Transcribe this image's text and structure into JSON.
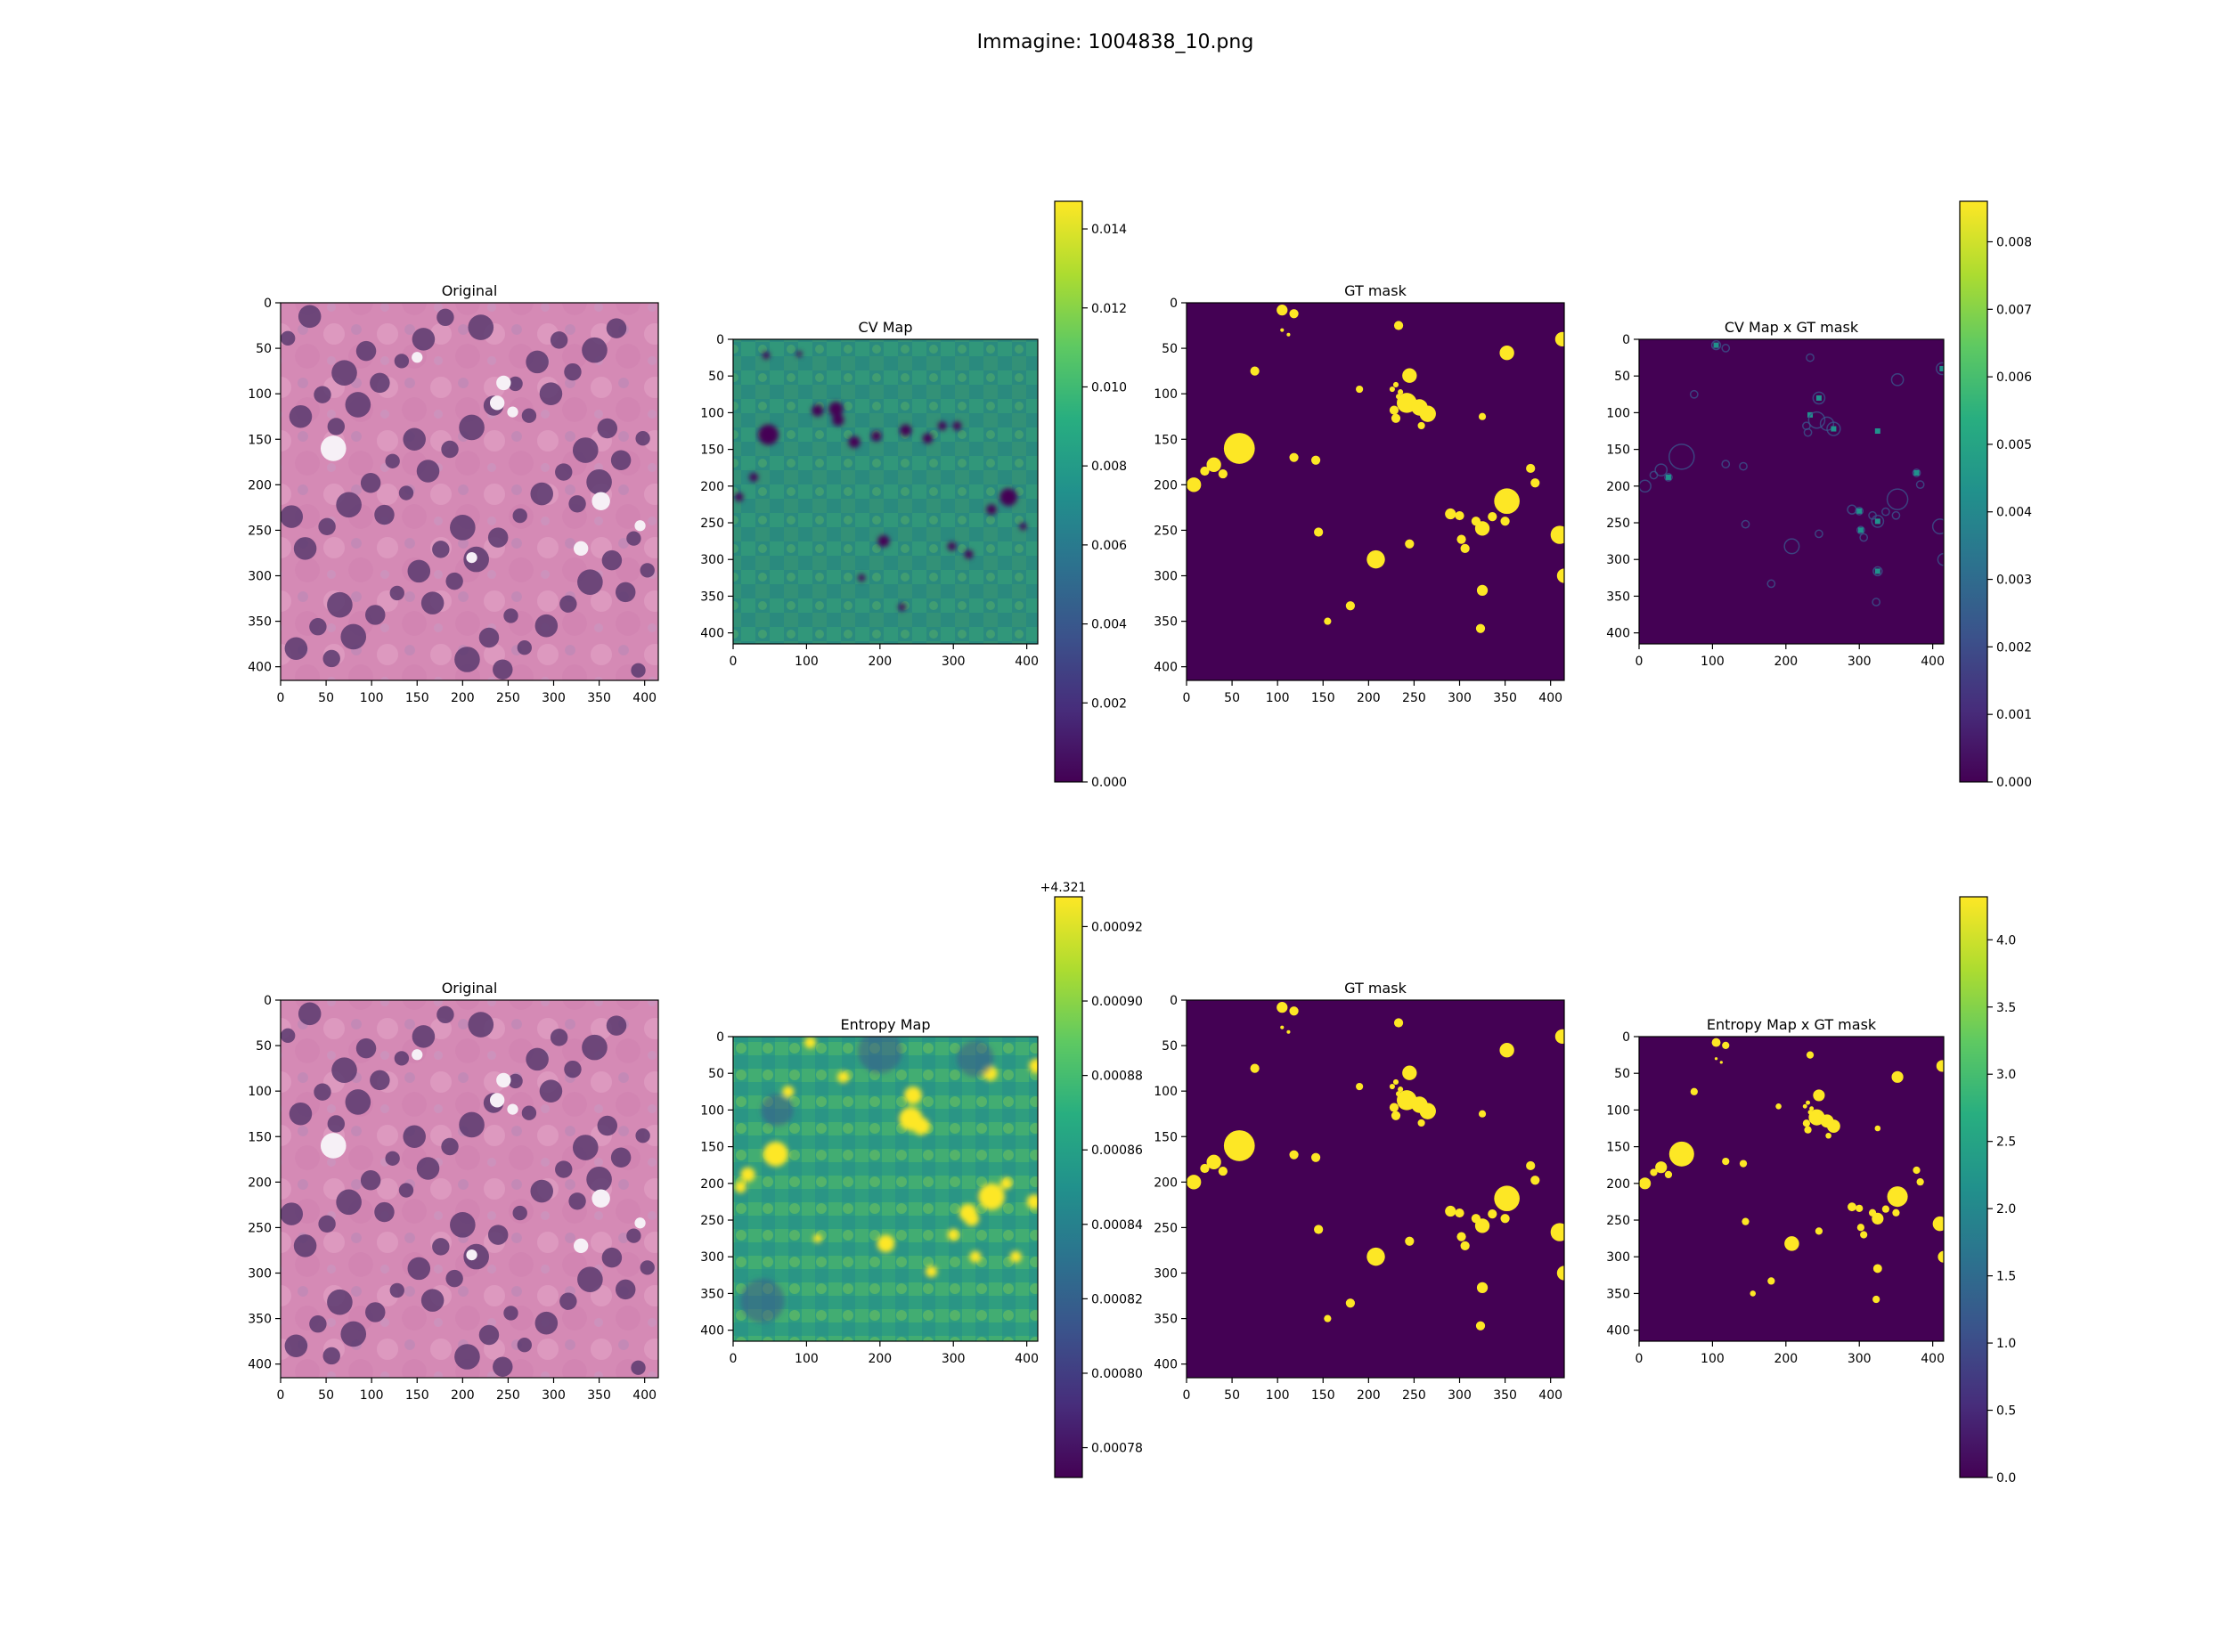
{
  "figure": {
    "suptitle": "Immagine: 1004838_10.png"
  },
  "colors": {
    "viridis_dark": "#440154",
    "viridis_yellow": "#fde725",
    "tissue_pink": "#d98bb5",
    "nucleus_purple": "#5a3a6e"
  },
  "chart_data": [
    {
      "type": "heatmap",
      "title": "Original",
      "row": 1,
      "col": 1,
      "image": "H&E histology tile",
      "xticks": [
        "0",
        "50",
        "100",
        "150",
        "200",
        "250",
        "300",
        "350",
        "400"
      ],
      "yticks": [
        "0",
        "50",
        "100",
        "150",
        "200",
        "250",
        "300",
        "350",
        "400"
      ],
      "xlim": [
        0,
        415
      ],
      "ylim": [
        415,
        0
      ],
      "colorbar": null
    },
    {
      "type": "heatmap",
      "title": "CV Map",
      "row": 1,
      "col": 2,
      "colormap": "viridis",
      "xticks": [
        "0",
        "100",
        "200",
        "300",
        "400"
      ],
      "yticks": [
        "0",
        "50",
        "100",
        "150",
        "200",
        "250",
        "300",
        "350",
        "400"
      ],
      "xlim": [
        0,
        415
      ],
      "ylim": [
        415,
        0
      ],
      "colorbar": {
        "min": 0.0,
        "max": 0.0147,
        "offset": "",
        "ticks": [
          {
            "v": 0.0,
            "label": "0.000"
          },
          {
            "v": 0.002,
            "label": "0.002"
          },
          {
            "v": 0.004,
            "label": "0.004"
          },
          {
            "v": 0.006,
            "label": "0.006"
          },
          {
            "v": 0.008,
            "label": "0.008"
          },
          {
            "v": 0.01,
            "label": "0.010"
          },
          {
            "v": 0.012,
            "label": "0.012"
          },
          {
            "v": 0.014,
            "label": "0.014"
          }
        ]
      }
    },
    {
      "type": "heatmap",
      "title": "GT mask",
      "row": 1,
      "col": 3,
      "colormap": "viridis",
      "xticks": [
        "0",
        "50",
        "100",
        "150",
        "200",
        "250",
        "300",
        "350",
        "400"
      ],
      "yticks": [
        "0",
        "50",
        "100",
        "150",
        "200",
        "250",
        "300",
        "350",
        "400"
      ],
      "xlim": [
        0,
        415
      ],
      "ylim": [
        415,
        0
      ],
      "colorbar": null
    },
    {
      "type": "heatmap",
      "title": "CV Map x GT mask",
      "row": 1,
      "col": 4,
      "colormap": "viridis",
      "xticks": [
        "0",
        "100",
        "200",
        "300",
        "400"
      ],
      "yticks": [
        "0",
        "50",
        "100",
        "150",
        "200",
        "250",
        "300",
        "350",
        "400"
      ],
      "xlim": [
        0,
        415
      ],
      "ylim": [
        415,
        0
      ],
      "colorbar": {
        "min": 0.0,
        "max": 0.0086,
        "offset": "",
        "ticks": [
          {
            "v": 0.0,
            "label": "0.000"
          },
          {
            "v": 0.001,
            "label": "0.001"
          },
          {
            "v": 0.002,
            "label": "0.002"
          },
          {
            "v": 0.003,
            "label": "0.003"
          },
          {
            "v": 0.004,
            "label": "0.004"
          },
          {
            "v": 0.005,
            "label": "0.005"
          },
          {
            "v": 0.006,
            "label": "0.006"
          },
          {
            "v": 0.007,
            "label": "0.007"
          },
          {
            "v": 0.008,
            "label": "0.008"
          }
        ]
      }
    },
    {
      "type": "heatmap",
      "title": "Original",
      "row": 2,
      "col": 1,
      "image": "H&E histology tile",
      "xticks": [
        "0",
        "50",
        "100",
        "150",
        "200",
        "250",
        "300",
        "350",
        "400"
      ],
      "yticks": [
        "0",
        "50",
        "100",
        "150",
        "200",
        "250",
        "300",
        "350",
        "400"
      ],
      "xlim": [
        0,
        415
      ],
      "ylim": [
        415,
        0
      ],
      "colorbar": null
    },
    {
      "type": "heatmap",
      "title": "Entropy Map",
      "row": 2,
      "col": 2,
      "colormap": "viridis",
      "xticks": [
        "0",
        "100",
        "200",
        "300",
        "400"
      ],
      "yticks": [
        "0",
        "50",
        "100",
        "150",
        "200",
        "250",
        "300",
        "350",
        "400"
      ],
      "xlim": [
        0,
        415
      ],
      "ylim": [
        415,
        0
      ],
      "colorbar": {
        "min": 0.000772,
        "max": 0.000928,
        "offset": "+4.321",
        "ticks": [
          {
            "v": 0.00078,
            "label": "0.00078"
          },
          {
            "v": 0.0008,
            "label": "0.00080"
          },
          {
            "v": 0.00082,
            "label": "0.00082"
          },
          {
            "v": 0.00084,
            "label": "0.00084"
          },
          {
            "v": 0.00086,
            "label": "0.00086"
          },
          {
            "v": 0.00088,
            "label": "0.00088"
          },
          {
            "v": 0.0009,
            "label": "0.00090"
          },
          {
            "v": 0.00092,
            "label": "0.00092"
          }
        ]
      }
    },
    {
      "type": "heatmap",
      "title": "GT mask",
      "row": 2,
      "col": 3,
      "colormap": "viridis",
      "xticks": [
        "0",
        "50",
        "100",
        "150",
        "200",
        "250",
        "300",
        "350",
        "400"
      ],
      "yticks": [
        "0",
        "50",
        "100",
        "150",
        "200",
        "250",
        "300",
        "350",
        "400"
      ],
      "xlim": [
        0,
        415
      ],
      "ylim": [
        415,
        0
      ],
      "colorbar": null
    },
    {
      "type": "heatmap",
      "title": "Entropy Map x GT mask",
      "row": 2,
      "col": 4,
      "colormap": "viridis",
      "xticks": [
        "0",
        "100",
        "200",
        "300",
        "400"
      ],
      "yticks": [
        "0",
        "50",
        "100",
        "150",
        "200",
        "250",
        "300",
        "350",
        "400"
      ],
      "xlim": [
        0,
        415
      ],
      "ylim": [
        415,
        0
      ],
      "colorbar": {
        "min": 0.0,
        "max": 4.32,
        "offset": "",
        "ticks": [
          {
            "v": 0.0,
            "label": "0.0"
          },
          {
            "v": 0.5,
            "label": "0.5"
          },
          {
            "v": 1.0,
            "label": "1.0"
          },
          {
            "v": 1.5,
            "label": "1.5"
          },
          {
            "v": 2.0,
            "label": "2.0"
          },
          {
            "v": 2.5,
            "label": "2.5"
          },
          {
            "v": 3.0,
            "label": "3.0"
          },
          {
            "v": 3.5,
            "label": "3.5"
          },
          {
            "v": 4.0,
            "label": "4.0"
          }
        ]
      }
    }
  ],
  "gt_blobs": [
    [
      105,
      8,
      6
    ],
    [
      118,
      12,
      5
    ],
    [
      233,
      25,
      5
    ],
    [
      352,
      55,
      8
    ],
    [
      413,
      40,
      8
    ],
    [
      105,
      30,
      2
    ],
    [
      112,
      35,
      2
    ],
    [
      75,
      75,
      5
    ],
    [
      245,
      80,
      8
    ],
    [
      230,
      90,
      3
    ],
    [
      226,
      95,
      3
    ],
    [
      235,
      98,
      3
    ],
    [
      233,
      103,
      3
    ],
    [
      190,
      95,
      4
    ],
    [
      242,
      110,
      11
    ],
    [
      256,
      115,
      9
    ],
    [
      265,
      122,
      9
    ],
    [
      258,
      135,
      4
    ],
    [
      228,
      118,
      5
    ],
    [
      230,
      127,
      5
    ],
    [
      325,
      125,
      4
    ],
    [
      58,
      160,
      17
    ],
    [
      30,
      178,
      8
    ],
    [
      20,
      185,
      5
    ],
    [
      40,
      188,
      5
    ],
    [
      8,
      200,
      8
    ],
    [
      118,
      170,
      5
    ],
    [
      142,
      173,
      5
    ],
    [
      378,
      182,
      5
    ],
    [
      383,
      198,
      5
    ],
    [
      352,
      218,
      14
    ],
    [
      290,
      232,
      6
    ],
    [
      300,
      234,
      5
    ],
    [
      336,
      235,
      5
    ],
    [
      350,
      240,
      5
    ],
    [
      318,
      240,
      5
    ],
    [
      325,
      248,
      8
    ],
    [
      410,
      255,
      10
    ],
    [
      145,
      252,
      5
    ],
    [
      245,
      265,
      5
    ],
    [
      302,
      260,
      5
    ],
    [
      306,
      270,
      5
    ],
    [
      208,
      282,
      10
    ],
    [
      415,
      300,
      8
    ],
    [
      325,
      316,
      6
    ],
    [
      180,
      333,
      5
    ],
    [
      155,
      350,
      4
    ],
    [
      323,
      358,
      5
    ]
  ],
  "dark_blobs": [
    [
      48,
      130,
      14
    ],
    [
      28,
      188,
      6
    ],
    [
      8,
      215,
      6
    ],
    [
      115,
      97,
      8
    ],
    [
      140,
      95,
      10
    ],
    [
      143,
      110,
      8
    ],
    [
      165,
      140,
      8
    ],
    [
      195,
      132,
      7
    ],
    [
      235,
      124,
      8
    ],
    [
      265,
      135,
      7
    ],
    [
      285,
      118,
      6
    ],
    [
      305,
      118,
      6
    ],
    [
      375,
      215,
      12
    ],
    [
      352,
      232,
      7
    ],
    [
      395,
      255,
      5
    ],
    [
      205,
      275,
      8
    ],
    [
      298,
      282,
      6
    ],
    [
      321,
      293,
      6
    ],
    [
      175,
      325,
      5
    ],
    [
      230,
      365,
      5
    ],
    [
      90,
      20,
      4
    ],
    [
      45,
      22,
      5
    ]
  ],
  "bright_blobs": [
    [
      58,
      160,
      17
    ],
    [
      245,
      80,
      12
    ],
    [
      242,
      112,
      16
    ],
    [
      256,
      122,
      12
    ],
    [
      352,
      218,
      18
    ],
    [
      320,
      240,
      12
    ],
    [
      325,
      248,
      10
    ],
    [
      410,
      225,
      10
    ],
    [
      20,
      188,
      10
    ],
    [
      10,
      205,
      8
    ],
    [
      208,
      282,
      12
    ],
    [
      300,
      270,
      8
    ],
    [
      372,
      200,
      8
    ],
    [
      150,
      55,
      8
    ],
    [
      105,
      8,
      8
    ],
    [
      350,
      50,
      10
    ],
    [
      413,
      40,
      10
    ],
    [
      75,
      75,
      8
    ],
    [
      270,
      320,
      8
    ],
    [
      330,
      300,
      8
    ],
    [
      385,
      300,
      8
    ],
    [
      115,
      275,
      6
    ]
  ]
}
